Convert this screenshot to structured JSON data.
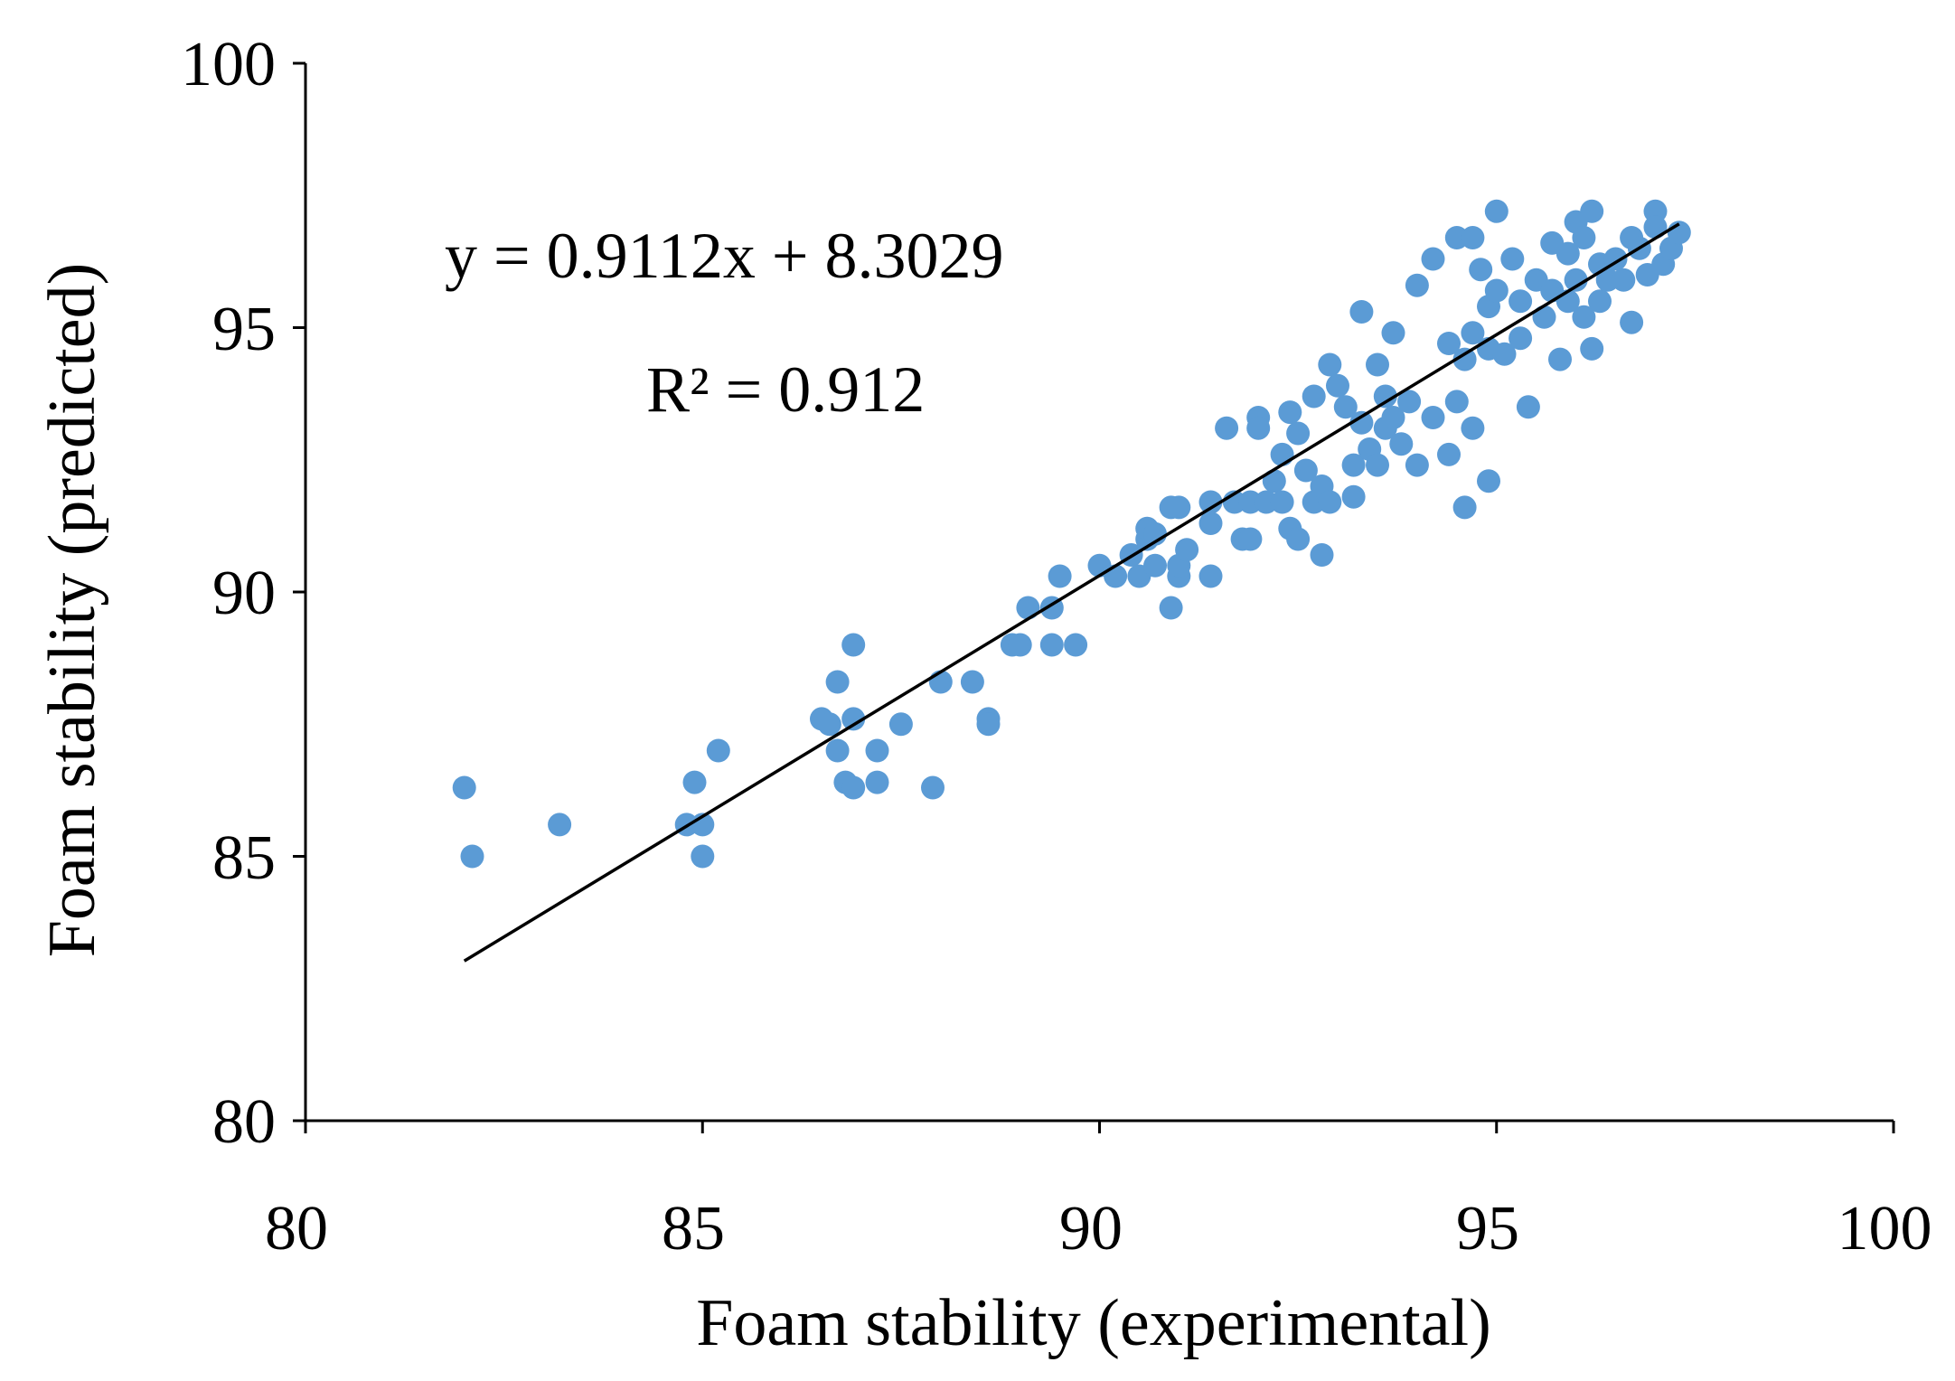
{
  "chart_data": {
    "type": "scatter",
    "title": "",
    "xlabel": "Foam stability (experimental)",
    "ylabel": "Foam stability (predicted)",
    "xlim": [
      80,
      100
    ],
    "ylim": [
      80,
      100
    ],
    "x_ticks": [
      "80",
      "85",
      "90",
      "95",
      "100"
    ],
    "y_ticks": [
      "80",
      "85",
      "90",
      "95",
      "100"
    ],
    "grid": false,
    "legend": "none",
    "point_color": "#5b9bd5",
    "line_color": "#000000",
    "annotations": {
      "equation": "y = 0.9112x + 8.3029",
      "r_squared": "R² = 0.912"
    },
    "trendline": {
      "slope": 0.9112,
      "intercept": 8.3029,
      "x_range": [
        82.0,
        97.3
      ]
    },
    "series": [
      {
        "name": "Foam stability",
        "points": [
          [
            82.0,
            86.3
          ],
          [
            82.1,
            85.0
          ],
          [
            83.2,
            85.6
          ],
          [
            84.8,
            85.6
          ],
          [
            84.9,
            86.4
          ],
          [
            85.0,
            85.0
          ],
          [
            85.0,
            85.6
          ],
          [
            85.2,
            87.0
          ],
          [
            86.5,
            87.6
          ],
          [
            86.6,
            87.5
          ],
          [
            86.7,
            88.3
          ],
          [
            86.7,
            87.0
          ],
          [
            86.8,
            86.4
          ],
          [
            86.9,
            86.3
          ],
          [
            86.9,
            89.0
          ],
          [
            86.9,
            87.6
          ],
          [
            87.2,
            87.0
          ],
          [
            87.2,
            86.4
          ],
          [
            87.5,
            87.5
          ],
          [
            87.9,
            86.3
          ],
          [
            88.0,
            88.3
          ],
          [
            88.4,
            88.3
          ],
          [
            88.6,
            87.6
          ],
          [
            88.6,
            87.5
          ],
          [
            88.9,
            89.0
          ],
          [
            89.0,
            89.0
          ],
          [
            89.1,
            89.7
          ],
          [
            89.4,
            89.7
          ],
          [
            89.4,
            89.0
          ],
          [
            89.5,
            90.3
          ],
          [
            89.7,
            89.0
          ],
          [
            90.0,
            90.5
          ],
          [
            90.2,
            90.3
          ],
          [
            90.4,
            90.7
          ],
          [
            90.5,
            90.3
          ],
          [
            90.6,
            91.0
          ],
          [
            90.6,
            91.2
          ],
          [
            90.7,
            91.1
          ],
          [
            90.7,
            90.5
          ],
          [
            90.9,
            89.7
          ],
          [
            90.9,
            91.6
          ],
          [
            91.0,
            91.6
          ],
          [
            91.0,
            90.3
          ],
          [
            91.0,
            90.5
          ],
          [
            91.1,
            90.8
          ],
          [
            91.4,
            91.3
          ],
          [
            91.4,
            90.3
          ],
          [
            91.4,
            91.7
          ],
          [
            91.6,
            93.1
          ],
          [
            91.7,
            91.7
          ],
          [
            91.8,
            91.0
          ],
          [
            91.9,
            91.7
          ],
          [
            91.9,
            91.0
          ],
          [
            92.0,
            93.3
          ],
          [
            92.0,
            93.1
          ],
          [
            92.1,
            91.7
          ],
          [
            92.2,
            92.1
          ],
          [
            92.3,
            92.6
          ],
          [
            92.3,
            91.7
          ],
          [
            92.4,
            93.4
          ],
          [
            92.4,
            91.2
          ],
          [
            92.5,
            91.0
          ],
          [
            92.5,
            93.0
          ],
          [
            92.6,
            92.3
          ],
          [
            92.7,
            93.7
          ],
          [
            92.7,
            91.7
          ],
          [
            92.8,
            92.0
          ],
          [
            92.8,
            90.7
          ],
          [
            92.9,
            94.3
          ],
          [
            92.9,
            91.7
          ],
          [
            93.0,
            93.9
          ],
          [
            93.1,
            93.5
          ],
          [
            93.2,
            92.4
          ],
          [
            93.2,
            91.8
          ],
          [
            93.3,
            95.3
          ],
          [
            93.3,
            93.2
          ],
          [
            93.4,
            92.7
          ],
          [
            93.5,
            94.3
          ],
          [
            93.5,
            92.4
          ],
          [
            93.6,
            93.7
          ],
          [
            93.6,
            93.1
          ],
          [
            93.7,
            94.9
          ],
          [
            93.7,
            93.3
          ],
          [
            93.8,
            92.8
          ],
          [
            93.9,
            93.6
          ],
          [
            94.0,
            95.8
          ],
          [
            94.0,
            92.4
          ],
          [
            94.2,
            96.3
          ],
          [
            94.2,
            93.3
          ],
          [
            94.4,
            94.7
          ],
          [
            94.4,
            92.6
          ],
          [
            94.5,
            96.7
          ],
          [
            94.5,
            93.6
          ],
          [
            94.6,
            94.4
          ],
          [
            94.6,
            91.6
          ],
          [
            94.7,
            96.7
          ],
          [
            94.7,
            94.9
          ],
          [
            94.7,
            93.1
          ],
          [
            94.8,
            96.1
          ],
          [
            94.9,
            95.4
          ],
          [
            94.9,
            94.6
          ],
          [
            94.9,
            92.1
          ],
          [
            95.0,
            97.2
          ],
          [
            95.0,
            95.7
          ],
          [
            95.1,
            94.5
          ],
          [
            95.2,
            96.3
          ],
          [
            95.3,
            95.5
          ],
          [
            95.3,
            94.8
          ],
          [
            95.4,
            93.5
          ],
          [
            95.5,
            95.9
          ],
          [
            95.6,
            95.2
          ],
          [
            95.7,
            96.6
          ],
          [
            95.7,
            95.7
          ],
          [
            95.8,
            94.4
          ],
          [
            95.9,
            96.4
          ],
          [
            95.9,
            95.5
          ],
          [
            96.0,
            97.0
          ],
          [
            96.0,
            95.9
          ],
          [
            96.1,
            95.2
          ],
          [
            96.1,
            96.7
          ],
          [
            96.2,
            94.6
          ],
          [
            96.2,
            97.2
          ],
          [
            96.3,
            96.2
          ],
          [
            96.3,
            95.5
          ],
          [
            96.4,
            95.9
          ],
          [
            96.5,
            96.3
          ],
          [
            96.6,
            95.9
          ],
          [
            96.7,
            96.7
          ],
          [
            96.7,
            95.1
          ],
          [
            96.8,
            96.5
          ],
          [
            96.9,
            96.0
          ],
          [
            97.0,
            97.2
          ],
          [
            97.0,
            96.9
          ],
          [
            97.1,
            96.2
          ],
          [
            97.2,
            96.5
          ],
          [
            97.3,
            96.8
          ]
        ]
      }
    ]
  }
}
